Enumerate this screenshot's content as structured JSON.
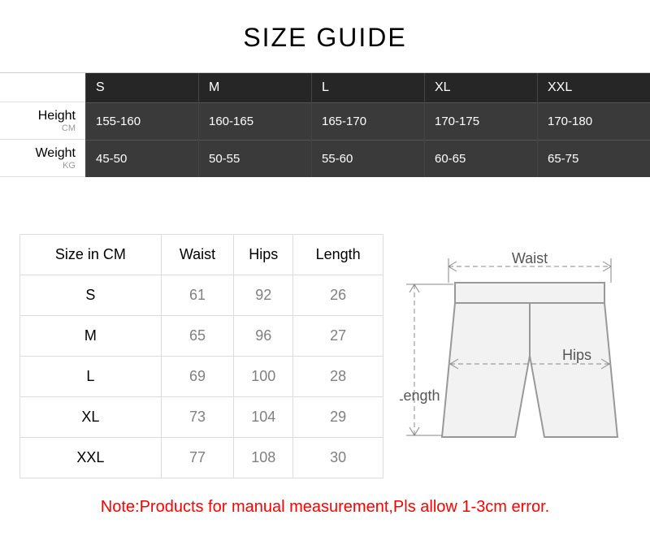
{
  "title": "SIZE GUIDE",
  "topTable": {
    "labels": {
      "height": {
        "main": "Height",
        "unit": "CM"
      },
      "weight": {
        "main": "Weight",
        "unit": "KG"
      }
    },
    "sizes": [
      "S",
      "M",
      "L",
      "XL",
      "XXL"
    ],
    "heightValues": [
      "155-160",
      "160-165",
      "165-170",
      "170-175",
      "170-180"
    ],
    "weightValues": [
      "45-50",
      "50-55",
      "55-60",
      "60-65",
      "65-75"
    ],
    "headerBg": "#262626",
    "cellBg": "#3a3a3a",
    "textColor": "#ffffff"
  },
  "bottomTable": {
    "columns": [
      "Size in CM",
      "Waist",
      "Hips",
      "Length"
    ],
    "rows": [
      [
        "S",
        "61",
        "92",
        "26"
      ],
      [
        "M",
        "65",
        "96",
        "27"
      ],
      [
        "L",
        "69",
        "100",
        "28"
      ],
      [
        "XL",
        "73",
        "104",
        "29"
      ],
      [
        "XXL",
        "77",
        "108",
        "30"
      ]
    ],
    "borderColor": "#dcdcdc",
    "headerColor": "#000000",
    "valueColor": "#808080"
  },
  "diagram": {
    "waistLabel": "Waist",
    "hipsLabel": "Hips",
    "lengthLabel": "Length",
    "strokeColor": "#888888",
    "fillColor": "#f0f0f0",
    "labelColor": "#555555"
  },
  "note": "Note:Products for manual measurement,Pls allow 1-3cm error.",
  "noteColor": "#ff0000"
}
